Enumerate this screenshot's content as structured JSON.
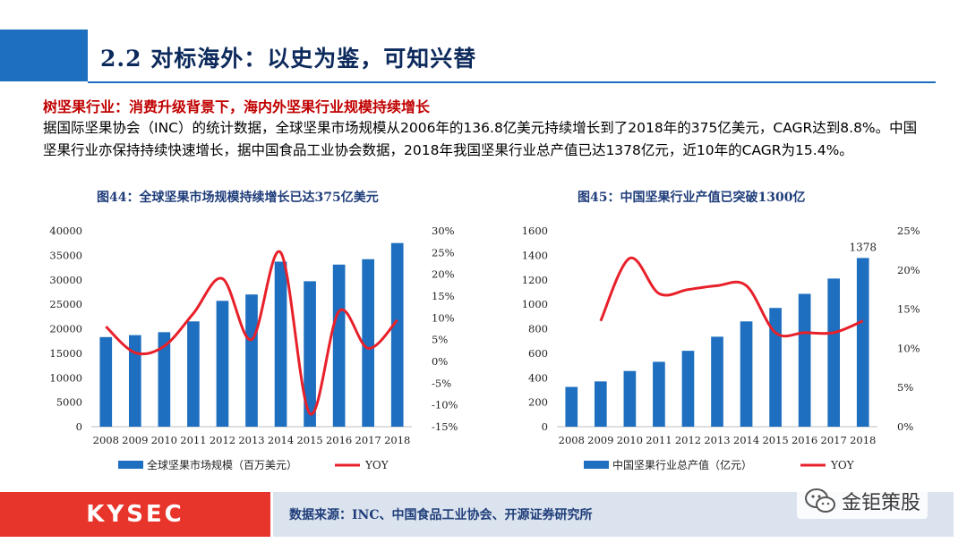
{
  "header": {
    "title": "2.2 对标海外：以史为鉴，可知兴替"
  },
  "subtitle": "树坚果行业：消费升级背景下，海内外坚果行业规模持续增长",
  "body_text": "据国际坚果协会（INC）的统计数据，全球坚果市场规模从2006年的136.8亿美元持续增长到了2018年的375亿美元，CAGR达到8.8%。中国坚果行业亦保持持续快速增长，据中国食品工业协会数据，2018年我国坚果行业总产值已达1378亿元，近10年的CAGR为15.4%。",
  "footer": {
    "logo": "KYSEC",
    "source": "数据来源：INC、中国食品工业协会、开源证券研究所"
  },
  "watermark": {
    "text": "金钜策股"
  },
  "colors": {
    "bar": "#1e6fbf",
    "line": "#e8202a",
    "header": "#1e6fbf",
    "accent_red": "#c00000"
  },
  "chart_data": [
    {
      "type": "bar",
      "title": "图44：全球坚果市场规模持续增长已达375亿美元",
      "categories": [
        "2008",
        "2009",
        "2010",
        "2011",
        "2012",
        "2013",
        "2014",
        "2015",
        "2016",
        "2017",
        "2018"
      ],
      "series": [
        {
          "name": "全球坚果市场规模（百万美元）",
          "type": "bar",
          "axis": "left",
          "values": [
            18300,
            18700,
            19300,
            21500,
            25700,
            27000,
            33700,
            29700,
            33100,
            34200,
            37500
          ]
        },
        {
          "name": "YOY",
          "type": "line",
          "axis": "right",
          "values": [
            0.08,
            0.02,
            0.035,
            0.11,
            0.19,
            0.05,
            0.25,
            -0.12,
            0.115,
            0.03,
            0.095
          ]
        }
      ],
      "left_axis": {
        "min": 0,
        "max": 40000,
        "ticks": [
          "0",
          "5000",
          "10000",
          "15000",
          "20000",
          "25000",
          "30000",
          "35000",
          "40000"
        ]
      },
      "right_axis": {
        "min": -0.15,
        "max": 0.3,
        "ticks": [
          "-15%",
          "-10%",
          "-5%",
          "0%",
          "5%",
          "10%",
          "15%",
          "20%",
          "25%",
          "30%"
        ]
      },
      "legend": {
        "placement": "bottom"
      },
      "grid": false
    },
    {
      "type": "bar",
      "title": "图45：中国坚果行业产值已突破1300亿",
      "categories": [
        "2008",
        "2009",
        "2010",
        "2011",
        "2012",
        "2013",
        "2014",
        "2015",
        "2016",
        "2017",
        "2018"
      ],
      "series": [
        {
          "name": "中国坚果行业总产值（亿元）",
          "type": "bar",
          "axis": "left",
          "values": [
            325,
            370,
            455,
            530,
            620,
            735,
            860,
            970,
            1085,
            1210,
            1378
          ]
        },
        {
          "name": "YOY",
          "type": "line",
          "axis": "right",
          "values": [
            null,
            0.135,
            0.215,
            0.17,
            0.175,
            0.18,
            0.18,
            0.12,
            0.12,
            0.12,
            0.135
          ]
        }
      ],
      "left_axis": {
        "min": 0,
        "max": 1600,
        "ticks": [
          "0",
          "200",
          "400",
          "600",
          "800",
          "1000",
          "1200",
          "1400",
          "1600"
        ]
      },
      "right_axis": {
        "min": 0,
        "max": 0.25,
        "ticks": [
          "0%",
          "5%",
          "10%",
          "15%",
          "20%",
          "25%"
        ]
      },
      "data_labels": [
        {
          "index": 10,
          "text": "1378"
        }
      ],
      "legend": {
        "placement": "bottom"
      },
      "grid": false
    }
  ]
}
